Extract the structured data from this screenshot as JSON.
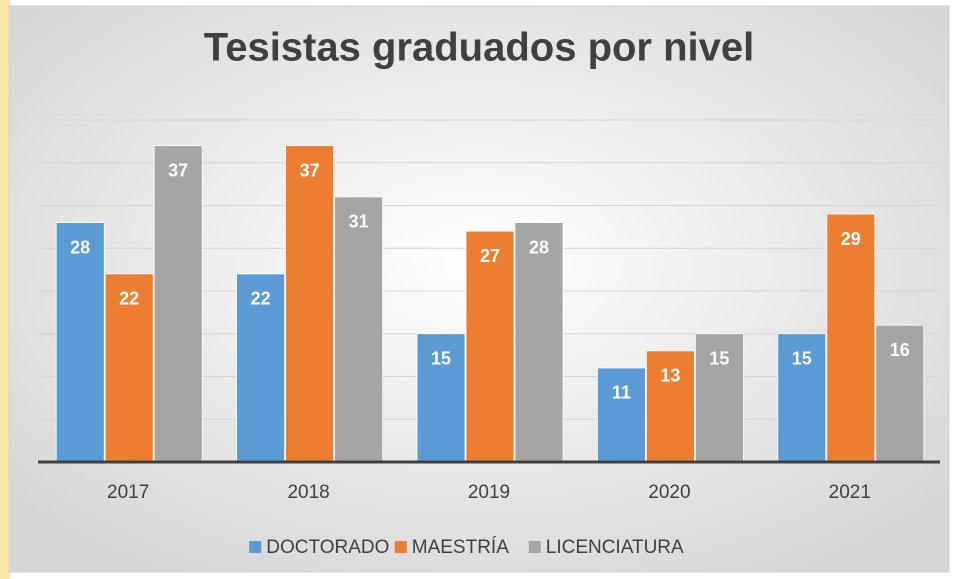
{
  "chart_data": {
    "type": "bar",
    "title": "Tesistas graduados por nivel",
    "categories": [
      "2017",
      "2018",
      "2019",
      "2020",
      "2021"
    ],
    "series": [
      {
        "name": "DOCTORADO",
        "color": "#5b9bd5",
        "values": [
          28,
          22,
          15,
          11,
          15
        ]
      },
      {
        "name": "MAESTRÍA",
        "color": "#ed7d31",
        "values": [
          22,
          37,
          27,
          13,
          29
        ]
      },
      {
        "name": "LICENCIATURA",
        "color": "#a5a5a5",
        "values": [
          37,
          31,
          28,
          15,
          16
        ]
      }
    ],
    "ylim": [
      0,
      40
    ],
    "yticks": [
      0,
      5,
      10,
      15,
      20,
      25,
      30,
      35,
      40
    ],
    "grid": true,
    "legend": "bottom"
  }
}
